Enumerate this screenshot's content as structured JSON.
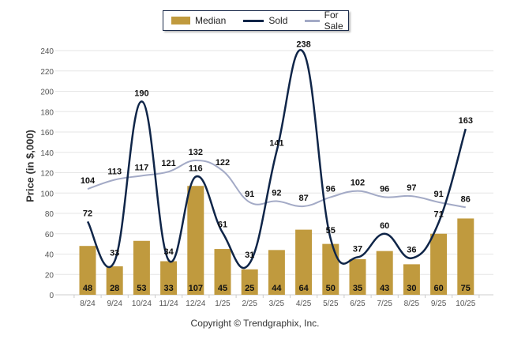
{
  "chart_data": {
    "type": "bar+line",
    "title": "",
    "xlabel": "",
    "ylabel": "Price (in $,000)",
    "ylim": [
      0,
      240
    ],
    "yticks": [
      0,
      20,
      40,
      60,
      80,
      100,
      120,
      140,
      160,
      180,
      200,
      220,
      240
    ],
    "grid": true,
    "legend_position": "top-center",
    "categories": [
      "8/24",
      "9/24",
      "10/24",
      "11/24",
      "12/24",
      "1/25",
      "2/25",
      "3/25",
      "4/25",
      "5/25",
      "6/25",
      "7/25",
      "8/25",
      "9/25",
      "10/25"
    ],
    "series": [
      {
        "name": "Median",
        "type": "bar",
        "color": "#c09a3e",
        "values": [
          48,
          28,
          53,
          33,
          107,
          45,
          25,
          44,
          64,
          50,
          35,
          43,
          30,
          60,
          75
        ]
      },
      {
        "name": "Sold",
        "type": "line",
        "color": "#0f2548",
        "values": [
          72,
          33,
          190,
          34,
          116,
          61,
          31,
          141,
          238,
          55,
          37,
          60,
          36,
          71,
          163
        ]
      },
      {
        "name": "For Sale",
        "type": "line",
        "color": "#a3aac6",
        "values": [
          104,
          113,
          117,
          121,
          132,
          122,
          91,
          92,
          87,
          96,
          102,
          96,
          97,
          91,
          86
        ]
      }
    ]
  },
  "legend": {
    "items": [
      {
        "label": "Median"
      },
      {
        "label": "Sold"
      },
      {
        "label": "For Sale"
      }
    ]
  },
  "footer": {
    "copyright": "Copyright © Trendgraphix, Inc."
  }
}
